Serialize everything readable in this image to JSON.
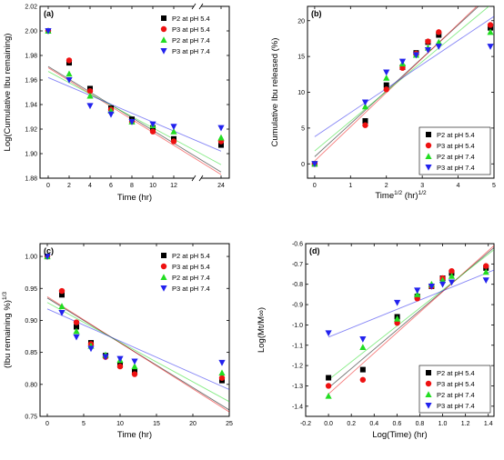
{
  "chart_data": [
    {
      "type": "scatter",
      "panel_label": "(a)",
      "xlabel": "Time (hr)",
      "ylabel": "Log(Cumulative Ibu remaining)",
      "xlim": [
        -1,
        25
      ],
      "ylim": [
        1.88,
        2.02
      ],
      "xticks": [
        0,
        2,
        4,
        6,
        8,
        10,
        12,
        24
      ],
      "yticks": [
        1.88,
        1.9,
        1.92,
        1.94,
        1.96,
        1.98,
        2.0,
        2.02
      ],
      "ytick_labels": [
        "1.88",
        "1.90",
        "1.92",
        "1.94",
        "1.96",
        "1.98",
        "2.00",
        "2.02"
      ],
      "x_break": true,
      "legend_position": "top-right",
      "series": [
        {
          "name": "P2 at pH 5.4",
          "color": "#000000",
          "marker": "square",
          "x": [
            0,
            2,
            4,
            6,
            8,
            10,
            12,
            24
          ],
          "y": [
            2.0,
            1.974,
            1.953,
            1.937,
            1.928,
            1.921,
            1.912,
            1.907
          ],
          "fit": [
            1.971,
            1.885
          ]
        },
        {
          "name": "P3 at pH 5.4",
          "color": "#ee1111",
          "marker": "circle",
          "x": [
            0,
            2,
            4,
            6,
            8,
            10,
            12,
            24
          ],
          "y": [
            2.0,
            1.976,
            1.951,
            1.936,
            1.926,
            1.918,
            1.91,
            1.91
          ],
          "fit": [
            1.97,
            1.883
          ]
        },
        {
          "name": "P2 at pH 7.4",
          "color": "#22dd22",
          "marker": "triangle-up",
          "x": [
            0,
            2,
            4,
            6,
            8,
            10,
            12,
            24
          ],
          "y": [
            2.0,
            1.965,
            1.947,
            1.935,
            1.926,
            1.923,
            1.918,
            1.913
          ],
          "fit": [
            1.967,
            1.891
          ]
        },
        {
          "name": "P3 at pH 7.4",
          "color": "#2222ee",
          "marker": "triangle-down",
          "x": [
            0,
            2,
            4,
            6,
            8,
            10,
            12,
            24
          ],
          "y": [
            2.0,
            1.96,
            1.939,
            1.932,
            1.926,
            1.924,
            1.922,
            1.921
          ],
          "fit": [
            1.962,
            1.902
          ]
        }
      ]
    },
    {
      "type": "scatter",
      "panel_label": "(b)",
      "xlabel": "Time",
      "xlabel_sup": "1/2",
      "xlabel_mid": " (hr)",
      "xlabel_sup2": "1/2",
      "ylabel": "Cumulative Ibu released (%)",
      "xlim": [
        -0.2,
        5
      ],
      "ylim": [
        -2,
        22
      ],
      "xticks": [
        0,
        1,
        2,
        3,
        4,
        5
      ],
      "yticks": [
        0,
        5,
        10,
        15,
        20
      ],
      "ytick_labels": [
        "0",
        "5",
        "10",
        "15",
        "20"
      ],
      "legend_position": "bottom-right",
      "series": [
        {
          "name": "P2 at pH 5.4",
          "color": "#000000",
          "marker": "square",
          "x": [
            0,
            1.41,
            2.0,
            2.45,
            2.83,
            3.16,
            3.46,
            4.9
          ],
          "y": [
            0,
            6.0,
            11.0,
            13.5,
            15.5,
            17.0,
            18.0,
            19.0
          ],
          "fit": [
            1.0,
            24.0
          ]
        },
        {
          "name": "P3 at pH 5.4",
          "color": "#ee1111",
          "marker": "circle",
          "x": [
            0,
            1.41,
            2.0,
            2.45,
            2.83,
            3.16,
            3.46,
            4.9
          ],
          "y": [
            0,
            5.4,
            10.4,
            13.4,
            15.4,
            17.1,
            18.4,
            19.4
          ],
          "fit": [
            0.4,
            24.3
          ]
        },
        {
          "name": "P2 at pH 7.4",
          "color": "#22dd22",
          "marker": "triangle-up",
          "x": [
            0,
            1.41,
            2.0,
            2.45,
            2.83,
            3.16,
            3.46,
            4.9
          ],
          "y": [
            0,
            8.0,
            12.0,
            14.0,
            15.2,
            16.2,
            17.0,
            18.4
          ],
          "fit": [
            1.8,
            22.6
          ]
        },
        {
          "name": "P3 at pH 7.4",
          "color": "#2222ee",
          "marker": "triangle-down",
          "x": [
            0,
            1.41,
            2.0,
            2.45,
            2.83,
            3.16,
            3.46,
            4.9
          ],
          "y": [
            0,
            8.6,
            12.8,
            14.3,
            15.2,
            15.9,
            16.4,
            16.4
          ],
          "fit": [
            3.8,
            20.6
          ]
        }
      ]
    },
    {
      "type": "scatter",
      "panel_label": "(c)",
      "xlabel": "Time (hr)",
      "ylabel": "(Ibu remaining %)",
      "ylabel_sup": "1/3",
      "xlim": [
        -1,
        25
      ],
      "ylim": [
        0.75,
        1.02
      ],
      "xticks": [
        0,
        5,
        10,
        15,
        20,
        25
      ],
      "yticks": [
        0.75,
        0.8,
        0.85,
        0.9,
        0.95,
        1.0
      ],
      "ytick_labels": [
        "0.75",
        "0.80",
        "0.85",
        "0.90",
        "0.95",
        "1.00"
      ],
      "legend_position": "top-right",
      "series": [
        {
          "name": "P2 at pH 5.4",
          "color": "#000000",
          "marker": "square",
          "x": [
            0,
            2,
            4,
            6,
            8,
            10,
            12,
            24
          ],
          "y": [
            1.0,
            0.94,
            0.89,
            0.865,
            0.845,
            0.83,
            0.82,
            0.806
          ],
          "fit": [
            0.935,
            0.76
          ]
        },
        {
          "name": "P3 at pH 5.4",
          "color": "#ee1111",
          "marker": "circle",
          "x": [
            0,
            2,
            4,
            6,
            8,
            10,
            12,
            24
          ],
          "y": [
            1.0,
            0.946,
            0.897,
            0.863,
            0.843,
            0.828,
            0.816,
            0.81
          ],
          "fit": [
            0.937,
            0.757
          ]
        },
        {
          "name": "P2 at pH 7.4",
          "color": "#22dd22",
          "marker": "triangle-up",
          "x": [
            0,
            2,
            4,
            6,
            8,
            10,
            12,
            24
          ],
          "y": [
            1.0,
            0.922,
            0.883,
            0.86,
            0.846,
            0.838,
            0.828,
            0.818
          ],
          "fit": [
            0.928,
            0.773
          ]
        },
        {
          "name": "P3 at pH 7.4",
          "color": "#2222ee",
          "marker": "triangle-down",
          "x": [
            0,
            2,
            4,
            6,
            8,
            10,
            12,
            24
          ],
          "y": [
            1.0,
            0.912,
            0.874,
            0.856,
            0.843,
            0.84,
            0.836,
            0.834
          ],
          "fit": [
            0.918,
            0.792
          ]
        }
      ]
    },
    {
      "type": "scatter",
      "panel_label": "(d)",
      "xlabel": "Log(Time) (hr)",
      "ylabel": "Log(Mt/M∞)",
      "xlim": [
        -0.2,
        1.45
      ],
      "ylim": [
        -1.45,
        -0.6
      ],
      "xticks": [
        -0.2,
        0.0,
        0.2,
        0.4,
        0.6,
        0.8,
        1.0,
        1.2,
        1.4
      ],
      "xtick_labels": [
        "-0.2",
        "0.0",
        "0.2",
        "0.4",
        "0.6",
        "0.8",
        "1.0",
        "1.2",
        "1.4"
      ],
      "yticks": [
        -1.4,
        -1.3,
        -1.2,
        -1.1,
        -1.0,
        -0.9,
        -0.8,
        -0.7,
        -0.6
      ],
      "ytick_labels": [
        "-1.4",
        "-1.3",
        "-1.2",
        "-1.1",
        "-1.0",
        "-0.9",
        "-0.8",
        "-0.7",
        "-0.6"
      ],
      "legend_position": "bottom-right",
      "series": [
        {
          "name": "P2 at pH 5.4",
          "color": "#000000",
          "marker": "square",
          "x": [
            0.0,
            0.301,
            0.602,
            0.778,
            0.903,
            1.0,
            1.079,
            1.38
          ],
          "y": [
            -1.26,
            -1.22,
            -0.96,
            -0.86,
            -0.81,
            -0.77,
            -0.745,
            -0.72
          ],
          "fit": [
            -1.31,
            -0.62
          ]
        },
        {
          "name": "P3 at pH 5.4",
          "color": "#ee1111",
          "marker": "circle",
          "x": [
            0.0,
            0.301,
            0.602,
            0.778,
            0.903,
            1.0,
            1.079,
            1.38
          ],
          "y": [
            -1.3,
            -1.27,
            -0.99,
            -0.87,
            -0.81,
            -0.77,
            -0.735,
            -0.71
          ],
          "fit": [
            -1.34,
            -0.61
          ]
        },
        {
          "name": "P2 at pH 7.4",
          "color": "#22dd22",
          "marker": "triangle-up",
          "x": [
            0.0,
            0.301,
            0.602,
            0.778,
            0.903,
            1.0,
            1.079,
            1.38
          ],
          "y": [
            -1.35,
            -1.11,
            -0.97,
            -0.85,
            -0.8,
            -0.78,
            -0.76,
            -0.74
          ],
          "fit": [
            -1.27,
            -0.63
          ]
        },
        {
          "name": "P3 at pH 7.4",
          "color": "#2222ee",
          "marker": "triangle-down",
          "x": [
            0.0,
            0.301,
            0.602,
            0.778,
            0.903,
            1.0,
            1.079,
            1.38
          ],
          "y": [
            -1.04,
            -1.07,
            -0.89,
            -0.83,
            -0.81,
            -0.8,
            -0.79,
            -0.78
          ],
          "fit": [
            -1.06,
            -0.73
          ]
        }
      ]
    }
  ]
}
